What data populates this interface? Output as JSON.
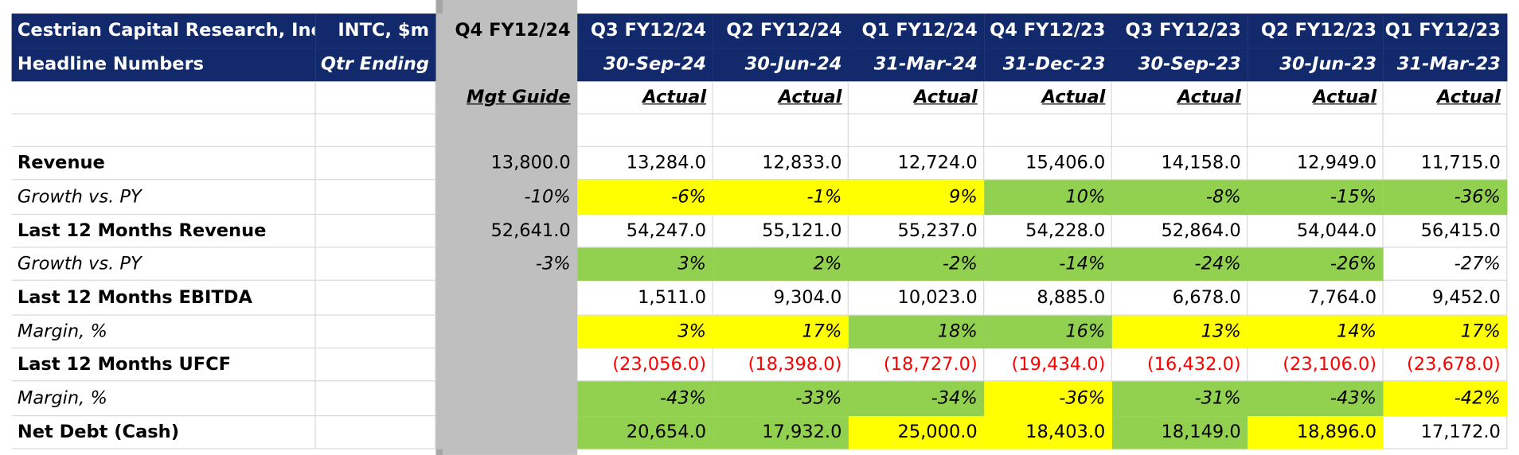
{
  "header": {
    "company": "Cestrian Capital Research, Inc",
    "subtitle": "Headline Numbers",
    "ticker": "INTC, $m",
    "period_label": "Qtr Ending",
    "columns": [
      {
        "quarter": "Q4 FY12/24",
        "date": null,
        "kind": "Mgt Guide"
      },
      {
        "quarter": "Q3 FY12/24",
        "date": "30-Sep-24",
        "kind": "Actual"
      },
      {
        "quarter": "Q2 FY12/24",
        "date": "30-Jun-24",
        "kind": "Actual"
      },
      {
        "quarter": "Q1 FY12/24",
        "date": "31-Mar-24",
        "kind": "Actual"
      },
      {
        "quarter": "Q4 FY12/23",
        "date": "31-Dec-23",
        "kind": "Actual"
      },
      {
        "quarter": "Q3 FY12/23",
        "date": "30-Sep-23",
        "kind": "Actual"
      },
      {
        "quarter": "Q2 FY12/23",
        "date": "30-Jun-23",
        "kind": "Actual"
      },
      {
        "quarter": "Q1 FY12/23",
        "date": "31-Mar-23",
        "kind": "Actual"
      }
    ]
  },
  "table": {
    "rows": [
      {
        "label": "Revenue",
        "italic": false,
        "color": "#000000",
        "cells": [
          "13,800.0",
          "13,284.0",
          "12,833.0",
          "12,724.0",
          "15,406.0",
          "14,158.0",
          "12,949.0",
          "11,715.0"
        ],
        "fills": [
          null,
          null,
          null,
          null,
          null,
          null,
          null,
          null
        ]
      },
      {
        "label": "Growth vs. PY",
        "italic": true,
        "color": "#000000",
        "cells": [
          "-10%",
          "-6%",
          "-1%",
          "9%",
          "10%",
          "-8%",
          "-15%",
          "-36%"
        ],
        "fills": [
          null,
          "#ffff00",
          "#ffff00",
          "#ffff00",
          "#92d050",
          "#92d050",
          "#92d050",
          "#92d050"
        ]
      },
      {
        "label": "Last 12 Months Revenue",
        "italic": false,
        "color": "#000000",
        "cells": [
          "52,641.0",
          "54,247.0",
          "55,121.0",
          "55,237.0",
          "54,228.0",
          "52,864.0",
          "54,044.0",
          "56,415.0"
        ],
        "fills": [
          null,
          null,
          null,
          null,
          null,
          null,
          null,
          null
        ]
      },
      {
        "label": "Growth vs. PY",
        "italic": true,
        "color": "#000000",
        "cells": [
          "-3%",
          "3%",
          "2%",
          "-2%",
          "-14%",
          "-24%",
          "-26%",
          "-27%"
        ],
        "fills": [
          null,
          "#92d050",
          "#92d050",
          "#92d050",
          "#92d050",
          "#92d050",
          "#92d050",
          null
        ]
      },
      {
        "label": "Last 12 Months EBITDA",
        "italic": false,
        "color": "#000000",
        "cells": [
          null,
          "1,511.0",
          "9,304.0",
          "10,023.0",
          "8,885.0",
          "6,678.0",
          "7,764.0",
          "9,452.0"
        ],
        "fills": [
          null,
          null,
          null,
          null,
          null,
          null,
          null,
          null
        ]
      },
      {
        "label": "Margin, %",
        "italic": true,
        "color": "#000000",
        "cells": [
          null,
          "3%",
          "17%",
          "18%",
          "16%",
          "13%",
          "14%",
          "17%"
        ],
        "fills": [
          null,
          "#ffff00",
          "#ffff00",
          "#92d050",
          "#92d050",
          "#ffff00",
          "#ffff00",
          "#ffff00"
        ]
      },
      {
        "label": "Last 12 Months UFCF",
        "italic": false,
        "color": "#ff0000",
        "cells": [
          null,
          "(23,056.0)",
          "(18,398.0)",
          "(18,727.0)",
          "(19,434.0)",
          "(16,432.0)",
          "(23,106.0)",
          "(23,678.0)"
        ],
        "fills": [
          null,
          null,
          null,
          null,
          null,
          null,
          null,
          null
        ]
      },
      {
        "label": "Margin, %",
        "italic": true,
        "color": "#000000",
        "cells": [
          null,
          "-43%",
          "-33%",
          "-34%",
          "-36%",
          "-31%",
          "-43%",
          "-42%"
        ],
        "fills": [
          null,
          "#92d050",
          "#92d050",
          "#92d050",
          "#ffff00",
          "#92d050",
          "#92d050",
          "#ffff00"
        ]
      },
      {
        "label": "Net Debt (Cash)",
        "italic": false,
        "color": "#000000",
        "cells": [
          null,
          "20,654.0",
          "17,932.0",
          "25,000.0",
          "18,403.0",
          "18,149.0",
          "18,896.0",
          "17,172.0"
        ],
        "fills": [
          null,
          "#92d050",
          "#92d050",
          "#ffff00",
          "#ffff00",
          "#92d050",
          "#ffff00",
          null
        ]
      }
    ]
  }
}
